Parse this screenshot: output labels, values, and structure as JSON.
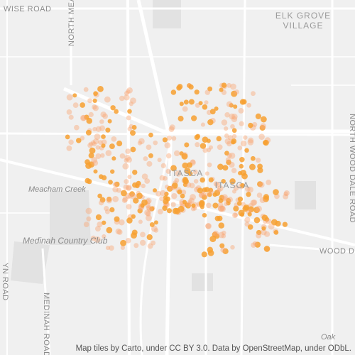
{
  "labels": {
    "wise_road": "WISE ROAD",
    "north_meacham": "NORTH MEA",
    "elk_grove": "ELK GROVE",
    "village": "VILLAGE",
    "itasca_1": "ITASCA",
    "itasca_2": "ITASCA",
    "meacham_creek": "Meacham Creek",
    "medinah_cc": "Medinah Country Club",
    "north_wood_dale": "NORTH WOOD DALE ROAD",
    "wood_dale": "WOOD D",
    "medinah_road": "MEDINAH ROAD",
    "yn_road": "YN ROAD",
    "oak": "Oak"
  },
  "attribution": "Map tiles by Carto, under CC BY 3.0. Data by OpenStreetMap, under ODbL."
}
